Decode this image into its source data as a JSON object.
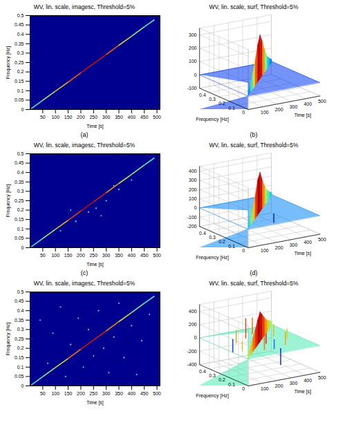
{
  "chart_data": [
    {
      "type": "heatmap",
      "panel_label": "(a)",
      "title": "WV, lin. scale, imagesc, Threshold=5%",
      "x_label": "Time [s]",
      "y_label": "Frequency [Hz]",
      "xlim": [
        0,
        512
      ],
      "xticks": [
        50,
        100,
        150,
        200,
        250,
        300,
        350,
        400,
        450,
        500
      ],
      "ylim": [
        0,
        0.5
      ],
      "yticks": [
        0,
        0.05,
        0.1,
        0.15,
        0.2,
        0.25,
        0.3,
        0.35,
        0.4,
        0.45,
        0.5
      ],
      "ridge": {
        "time": [
          5,
          50,
          100,
          150,
          200,
          250,
          300,
          350,
          400,
          450,
          490
        ],
        "frequency": [
          0.005,
          0.049,
          0.098,
          0.146,
          0.195,
          0.244,
          0.293,
          0.342,
          0.39,
          0.44,
          0.478
        ],
        "amplitude": [
          40,
          90,
          140,
          190,
          250,
          320,
          260,
          180,
          120,
          80,
          50
        ]
      }
    },
    {
      "type": "surface",
      "panel_label": "(b)",
      "title": "WV, lin. scale, surf, Threshold=5%",
      "x_label": "Time [s]",
      "y_label": "Frequency [Hz]",
      "xlim": [
        0,
        500
      ],
      "xticks": [
        100,
        200,
        300,
        400,
        500
      ],
      "ylim": [
        0,
        0.5
      ],
      "yticks": [
        0,
        0.1,
        0.2,
        0.3,
        0.4
      ],
      "zlim": [
        -100,
        350
      ],
      "zticks": [
        -100,
        0,
        100,
        200,
        300
      ],
      "ridge": {
        "time": [
          5,
          50,
          100,
          150,
          200,
          250,
          300,
          350,
          400,
          450,
          490
        ],
        "frequency": [
          0.005,
          0.049,
          0.098,
          0.146,
          0.195,
          0.244,
          0.293,
          0.342,
          0.39,
          0.44,
          0.478
        ],
        "amplitude": [
          20,
          60,
          120,
          190,
          280,
          330,
          250,
          160,
          90,
          50,
          20
        ]
      }
    },
    {
      "type": "heatmap",
      "panel_label": "(c)",
      "title": "WV, lin. scale, imagesc, Threshold=5%",
      "x_label": "Time [s]",
      "y_label": "Frequency [Hz]",
      "xlim": [
        0,
        512
      ],
      "xticks": [
        50,
        100,
        150,
        200,
        250,
        300,
        350,
        400,
        450,
        500
      ],
      "ylim": [
        0,
        0.5
      ],
      "yticks": [
        0,
        0.05,
        0.1,
        0.15,
        0.2,
        0.25,
        0.3,
        0.35,
        0.4,
        0.45,
        0.5
      ],
      "ridge": {
        "time": [
          5,
          50,
          100,
          150,
          200,
          250,
          300,
          350,
          400,
          450,
          490
        ],
        "frequency": [
          0.005,
          0.049,
          0.098,
          0.146,
          0.195,
          0.244,
          0.293,
          0.342,
          0.39,
          0.44,
          0.478
        ],
        "amplitude": [
          40,
          100,
          180,
          260,
          380,
          430,
          300,
          200,
          130,
          90,
          60
        ]
      },
      "noise": {
        "time": [
          120,
          180,
          230,
          260,
          300,
          350,
          400,
          160,
          280,
          330
        ],
        "frequency": [
          0.09,
          0.14,
          0.19,
          0.21,
          0.25,
          0.31,
          0.36,
          0.2,
          0.17,
          0.33
        ],
        "amplitude": [
          60,
          70,
          80,
          60,
          70,
          60,
          55,
          40,
          40,
          45
        ]
      }
    },
    {
      "type": "surface",
      "panel_label": "(d)",
      "title": "WV, lin. scale, surf, Threshold=5%",
      "x_label": "Time [s]",
      "y_label": "Frequency [Hz]",
      "xlim": [
        0,
        500
      ],
      "xticks": [
        100,
        200,
        300,
        400,
        500
      ],
      "ylim": [
        0,
        0.5
      ],
      "yticks": [
        0,
        0.1,
        0.2,
        0.3,
        0.4
      ],
      "zlim": [
        -200,
        450
      ],
      "zticks": [
        -200,
        -100,
        0,
        100,
        200,
        300,
        400
      ],
      "ridge": {
        "time": [
          5,
          50,
          100,
          150,
          200,
          250,
          300,
          350,
          400,
          450,
          490
        ],
        "frequency": [
          0.005,
          0.049,
          0.098,
          0.146,
          0.195,
          0.244,
          0.293,
          0.342,
          0.39,
          0.44,
          0.478
        ],
        "amplitude": [
          30,
          80,
          150,
          250,
          380,
          430,
          300,
          200,
          120,
          70,
          30
        ]
      },
      "noise": {
        "time": [
          150,
          250,
          300,
          350
        ],
        "frequency": [
          0.2,
          0.3,
          0.18,
          0.33
        ],
        "amplitude": [
          100,
          120,
          -100,
          90
        ]
      }
    },
    {
      "type": "heatmap",
      "title": "WV, lin. scale, imagesc, Threshold=5%",
      "x_label": "Time [s]",
      "y_label": "Frequency [Hz]",
      "xlim": [
        0,
        512
      ],
      "xticks": [
        50,
        100,
        150,
        200,
        250,
        300,
        350,
        400,
        450,
        500
      ],
      "ylim": [
        0,
        0.5
      ],
      "yticks": [
        0,
        0.05,
        0.1,
        0.15,
        0.2,
        0.25,
        0.3,
        0.35,
        0.4,
        0.45,
        0.5
      ],
      "ridge": {
        "time": [
          5,
          50,
          100,
          150,
          200,
          250,
          300,
          350,
          400,
          450,
          490
        ],
        "frequency": [
          0.005,
          0.049,
          0.098,
          0.146,
          0.195,
          0.244,
          0.293,
          0.342,
          0.39,
          0.44,
          0.478
        ],
        "amplitude": [
          60,
          110,
          170,
          240,
          350,
          450,
          320,
          230,
          160,
          110,
          70
        ]
      },
      "noise": {
        "time": [
          40,
          70,
          90,
          120,
          140,
          160,
          190,
          210,
          230,
          250,
          270,
          290,
          310,
          330,
          350,
          370,
          400,
          420,
          440,
          470
        ],
        "frequency": [
          0.35,
          0.12,
          0.28,
          0.42,
          0.05,
          0.22,
          0.36,
          0.1,
          0.3,
          0.16,
          0.4,
          0.2,
          0.07,
          0.26,
          0.44,
          0.15,
          0.32,
          0.06,
          0.24,
          0.38
        ],
        "amplitude": [
          60,
          80,
          70,
          60,
          70,
          90,
          80,
          70,
          100,
          90,
          80,
          100,
          70,
          90,
          70,
          80,
          70,
          60,
          70,
          60
        ]
      }
    },
    {
      "type": "surface",
      "title": "WV, lin. scale, surf, Threshold=5%",
      "x_label": "Time [s]",
      "y_label": "Frequency [Hz]",
      "xlim": [
        0,
        500
      ],
      "xticks": [
        100,
        200,
        300,
        400,
        500
      ],
      "ylim": [
        0,
        0.5
      ],
      "yticks": [
        0,
        0.1,
        0.2,
        0.3,
        0.4
      ],
      "zlim": [
        -400,
        500
      ],
      "zticks": [
        -400,
        -200,
        0,
        200,
        400
      ],
      "ridge": {
        "time": [
          5,
          50,
          100,
          150,
          200,
          250,
          300,
          350,
          400,
          450,
          490
        ],
        "frequency": [
          0.005,
          0.049,
          0.098,
          0.146,
          0.195,
          0.244,
          0.293,
          0.342,
          0.39,
          0.44,
          0.478
        ],
        "amplitude": [
          60,
          120,
          200,
          280,
          380,
          450,
          350,
          250,
          170,
          110,
          60
        ]
      },
      "noise": {
        "time": [
          60,
          120,
          180,
          220,
          260,
          300,
          340,
          380,
          420,
          150,
          280,
          350
        ],
        "frequency": [
          0.15,
          0.3,
          0.1,
          0.35,
          0.2,
          0.4,
          0.12,
          0.3,
          0.22,
          0.38,
          0.08,
          0.25
        ],
        "amplitude": [
          150,
          200,
          250,
          300,
          350,
          250,
          200,
          180,
          150,
          -200,
          -250,
          -150
        ]
      }
    }
  ]
}
